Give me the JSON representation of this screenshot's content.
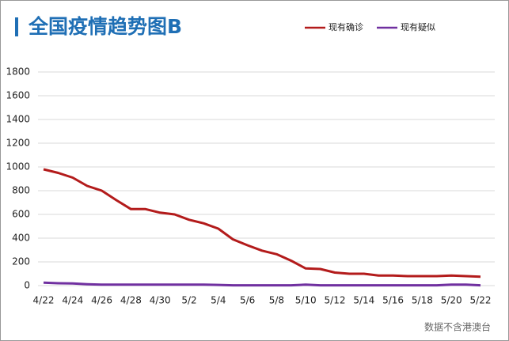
{
  "chart_data": {
    "type": "line",
    "title": "全国疫情趋势图B",
    "note": "数据不含港澳台",
    "categories": [
      "4/22",
      null,
      "4/24",
      null,
      "4/26",
      null,
      "4/28",
      null,
      "4/30",
      null,
      "5/2",
      null,
      "5/4",
      null,
      "5/6",
      null,
      "5/8",
      null,
      "5/10",
      null,
      "5/12",
      null,
      "5/14",
      null,
      "5/16",
      null,
      "5/18",
      null,
      "5/20",
      null,
      "5/22"
    ],
    "series": [
      {
        "name": "现有确诊",
        "color": "#b31b1b",
        "values": [
          980,
          950,
          910,
          840,
          800,
          720,
          645,
          645,
          615,
          600,
          555,
          525,
          480,
          390,
          340,
          295,
          265,
          210,
          145,
          140,
          110,
          100,
          100,
          85,
          85,
          80,
          80,
          80,
          85,
          80,
          75
        ]
      },
      {
        "name": "现有疑似",
        "color": "#7030a0",
        "values": [
          25,
          20,
          18,
          12,
          8,
          8,
          8,
          8,
          8,
          8,
          8,
          8,
          6,
          3,
          3,
          3,
          3,
          3,
          8,
          3,
          3,
          3,
          3,
          3,
          3,
          3,
          3,
          3,
          8,
          8,
          3
        ]
      }
    ],
    "ylim": [
      0,
      1800
    ],
    "yticks": [
      0,
      200,
      400,
      600,
      800,
      1000,
      1200,
      1400,
      1600,
      1800
    ],
    "grid": true
  }
}
